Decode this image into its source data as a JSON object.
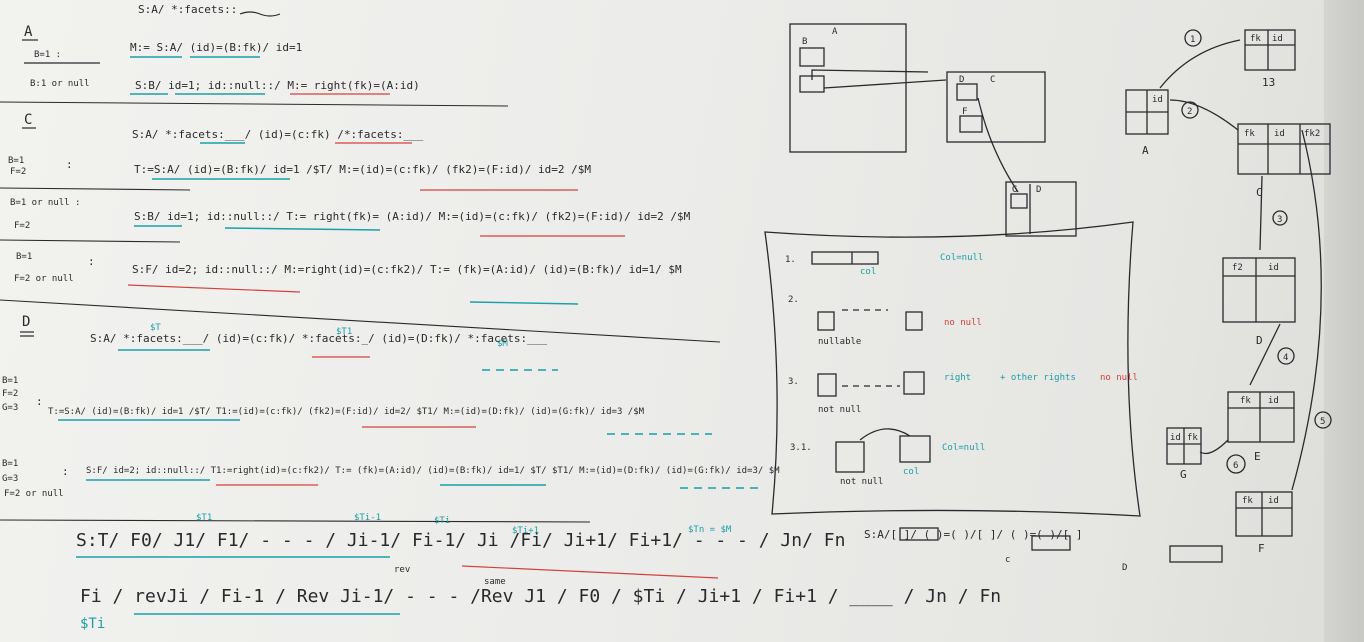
{
  "left_board": {
    "top_line": "S:A/ *:facets::",
    "section_a": {
      "heading": "A",
      "cond1": "B=1 :",
      "cond2": "B:1 or null",
      "eq1": "M:= S:A/ (id)=(B:fk)/ id=1",
      "eq2": "S:B/ id=1; id::null::/ M:= right(fk)=(A:id)"
    },
    "section_c": {
      "heading": "C",
      "line0": "S:A/ *:facets:___/ (id)=(c:fk) /*:facets:___",
      "c1_cond": "B=1\nF=2",
      "c1_eq": "T:=S:A/ (id)=(B:fk)/ id=1 /$T/ M:=(id)=(c:fk)/ (fk2)=(F:id)/ id=2 /$M",
      "c2_cond_a": "B=1 or null :",
      "c2_cond_b": "F=2",
      "c2_eq": "S:B/ id=1; id::null::/ T:= right(fk)= (A:id)/ M:=(id)=(c:fk)/ (fk2)=(F:id)/ id=2 /$M",
      "c3_cond_a": "B=1",
      "c3_cond_b": "F=2 or null",
      "c3_eq": "S:F/ id=2; id::null::/ M:=right(id)=(c:fk2)/ T:= (fk)=(A:id)/ (id)=(B:fk)/ id=1/ $M"
    },
    "section_d": {
      "heading": "D",
      "var_t": "$T",
      "var_t1": "$T1",
      "var_m": "$M",
      "line0": "S:A/ *:facets:___/ (id)=(c:fk)/ *:facets:_/ (id)=(D:fk)/ *:facets:___",
      "d1_cond_a": "B=1",
      "d1_cond_b": "F=2",
      "d1_cond_c": "G=3",
      "d1_eq": "T:=S:A/ (id)=(B:fk)/ id=1 /$T/ T1:=(id)=(c:fk)/ (fk2)=(F:id)/ id=2/ $T1/ M:=(id)=(D:fk)/ (id)=(G:fk)/ id=3 /$M",
      "d2_cond_a": "B=1",
      "d2_cond_b": "G=3",
      "d2_cond_c": "F=2 or null",
      "d2_eq": "S:F/ id=2; id::null::/ T1:=right(id)=(c:fk2)/ T:= (fk)=(A:id)/ (id)=(B:fk)/ id=1/ $T/ $T1/ M:=(id)=(D:fk)/ (id)=(G:fk)/ id=3/ $M"
    },
    "general": {
      "var_t1": "$T1",
      "var_ti1": "$Ti-1",
      "var_ti": "$Ti",
      "var_ti_1": "$Ti+1",
      "var_tn": "$Tn = $M",
      "line1": "S:T/ F0/ J1/ F1/ - - - / Ji-1/ Fi-1/ Ji /Fi/ Ji+1/ Fi+1/ - - - / Jn/ Fn",
      "note_rev": "rev",
      "note_same": "same",
      "line2": "Fi / revJi / Fi-1 / Rev Ji-1/ - - - /Rev J1 / F0 / $Ti / Ji+1 / Fi+1 / ____ / Jn / Fn",
      "var_ti_bottom": "$Ti"
    }
  },
  "right_board": {
    "box_a_label": "A",
    "box_a_inner": "B",
    "box_c_label": "C",
    "box_c_inner_d": "D",
    "box_c_inner_f": "F",
    "box_d_label": "D",
    "box_d_inner": "G",
    "schema": {
      "t13_fk": "fk",
      "t13_id": "id",
      "t13_label": "13",
      "ta_id": "id",
      "ta_label": "A",
      "tc_fk": "fk",
      "tc_id": "id",
      "tc_fk2": "fk2",
      "tc_label": "C",
      "tf2_fk": "f2",
      "tf2_id": "id",
      "td_label": "D",
      "te_fk": "fk",
      "te_id": "id",
      "te_label": "E",
      "tg_id": "id",
      "tg_fk": "fk",
      "tg_label": "G",
      "tf_fk": "fk",
      "tf_id": "id",
      "tf_label": "F",
      "n1": "1",
      "n2": "2",
      "n3": "3",
      "n4": "4",
      "n5": "5",
      "n6": "6"
    },
    "cases": {
      "c1_num": "1.",
      "c1_note": "Col=null",
      "c1_sub": "col",
      "c2_num": "2.",
      "c2_sub": "nullable",
      "c2_note": "no null",
      "c3_num": "3.",
      "c3_sub": "not null",
      "c3_note": "right",
      "c3_note2": "+ other rights",
      "c3_note3": "no null",
      "c31_num": "3.1.",
      "c31_sub": "not null",
      "c31_sub2": "col",
      "c31_note": "Col=null"
    },
    "bottom_formula": "S:A/[    ]/ ( )=( )/[    ]/ ( )=( )/[    ]",
    "bottom_sub_c": "c",
    "bottom_sub_d": "D"
  },
  "colors": {
    "ink": "#2a2a2e",
    "teal": "#1aa0a6",
    "red": "#d2423e",
    "board": "#ececea"
  }
}
